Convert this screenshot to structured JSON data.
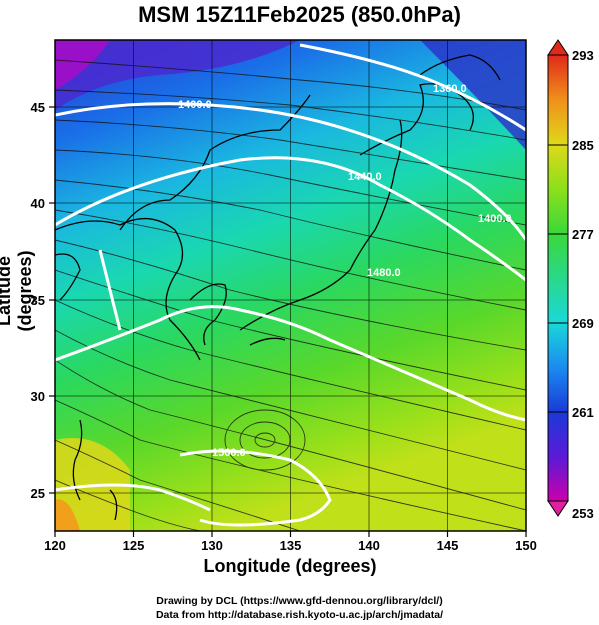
{
  "title": "MSM 15Z11Feb2025 (850.0hPa)",
  "x_axis": {
    "label": "Longitude (degrees)",
    "ticks": [
      "120",
      "125",
      "130",
      "135",
      "140",
      "145",
      "150"
    ],
    "range": [
      120,
      150
    ]
  },
  "y_axis": {
    "label": "Latitude  (degrees)",
    "ticks": [
      "25",
      "30",
      "35",
      "40",
      "45"
    ],
    "range": [
      22.5,
      48
    ]
  },
  "colorbar": {
    "ticks": [
      "293",
      "285",
      "277",
      "269",
      "261",
      "253"
    ],
    "range": [
      253,
      293
    ],
    "colors": [
      "#cc00aa",
      "#5a1ad8",
      "#1a3ad8",
      "#1a8cf0",
      "#1ad8d8",
      "#2ad88a",
      "#3ad83a",
      "#8ce01a",
      "#e0d81a",
      "#f0901a",
      "#e02a1a"
    ]
  },
  "contours": {
    "color": "#ffffff",
    "labels": [
      "1400.0",
      "1360.0",
      "1440.0",
      "1400.0",
      "1480.0",
      "1560.0"
    ]
  },
  "credits": {
    "line1": "Drawing by DCL (https://www.gfd-dennou.org/library/dcl/)",
    "line2": "Data from http://database.rish.kyoto-u.ac.jp/arch/jmadata/"
  }
}
